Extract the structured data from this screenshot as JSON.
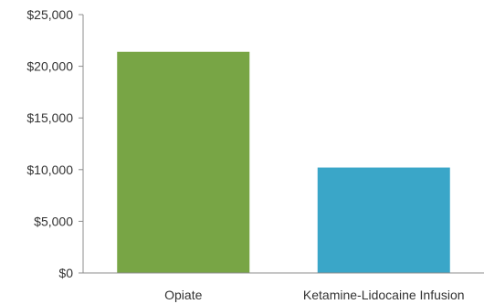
{
  "chart_data": {
    "type": "bar",
    "title": "",
    "xlabel": "",
    "ylabel": "",
    "categories": [
      "Opiate",
      "Ketamine-Lidocaine Infusion"
    ],
    "values": [
      21400,
      10200
    ],
    "bar_colors": [
      "#78a545",
      "#3aa6c8"
    ],
    "ylim": [
      0,
      25000
    ],
    "yticks": [
      0,
      5000,
      10000,
      15000,
      20000,
      25000
    ],
    "ytick_labels": [
      "$0",
      "$5,000",
      "$10,000",
      "$15,000",
      "$20,000",
      "$25,000"
    ],
    "grid": false,
    "legend": "none"
  },
  "colors": {
    "axis": "#8c8c8c",
    "text": "#333333"
  }
}
